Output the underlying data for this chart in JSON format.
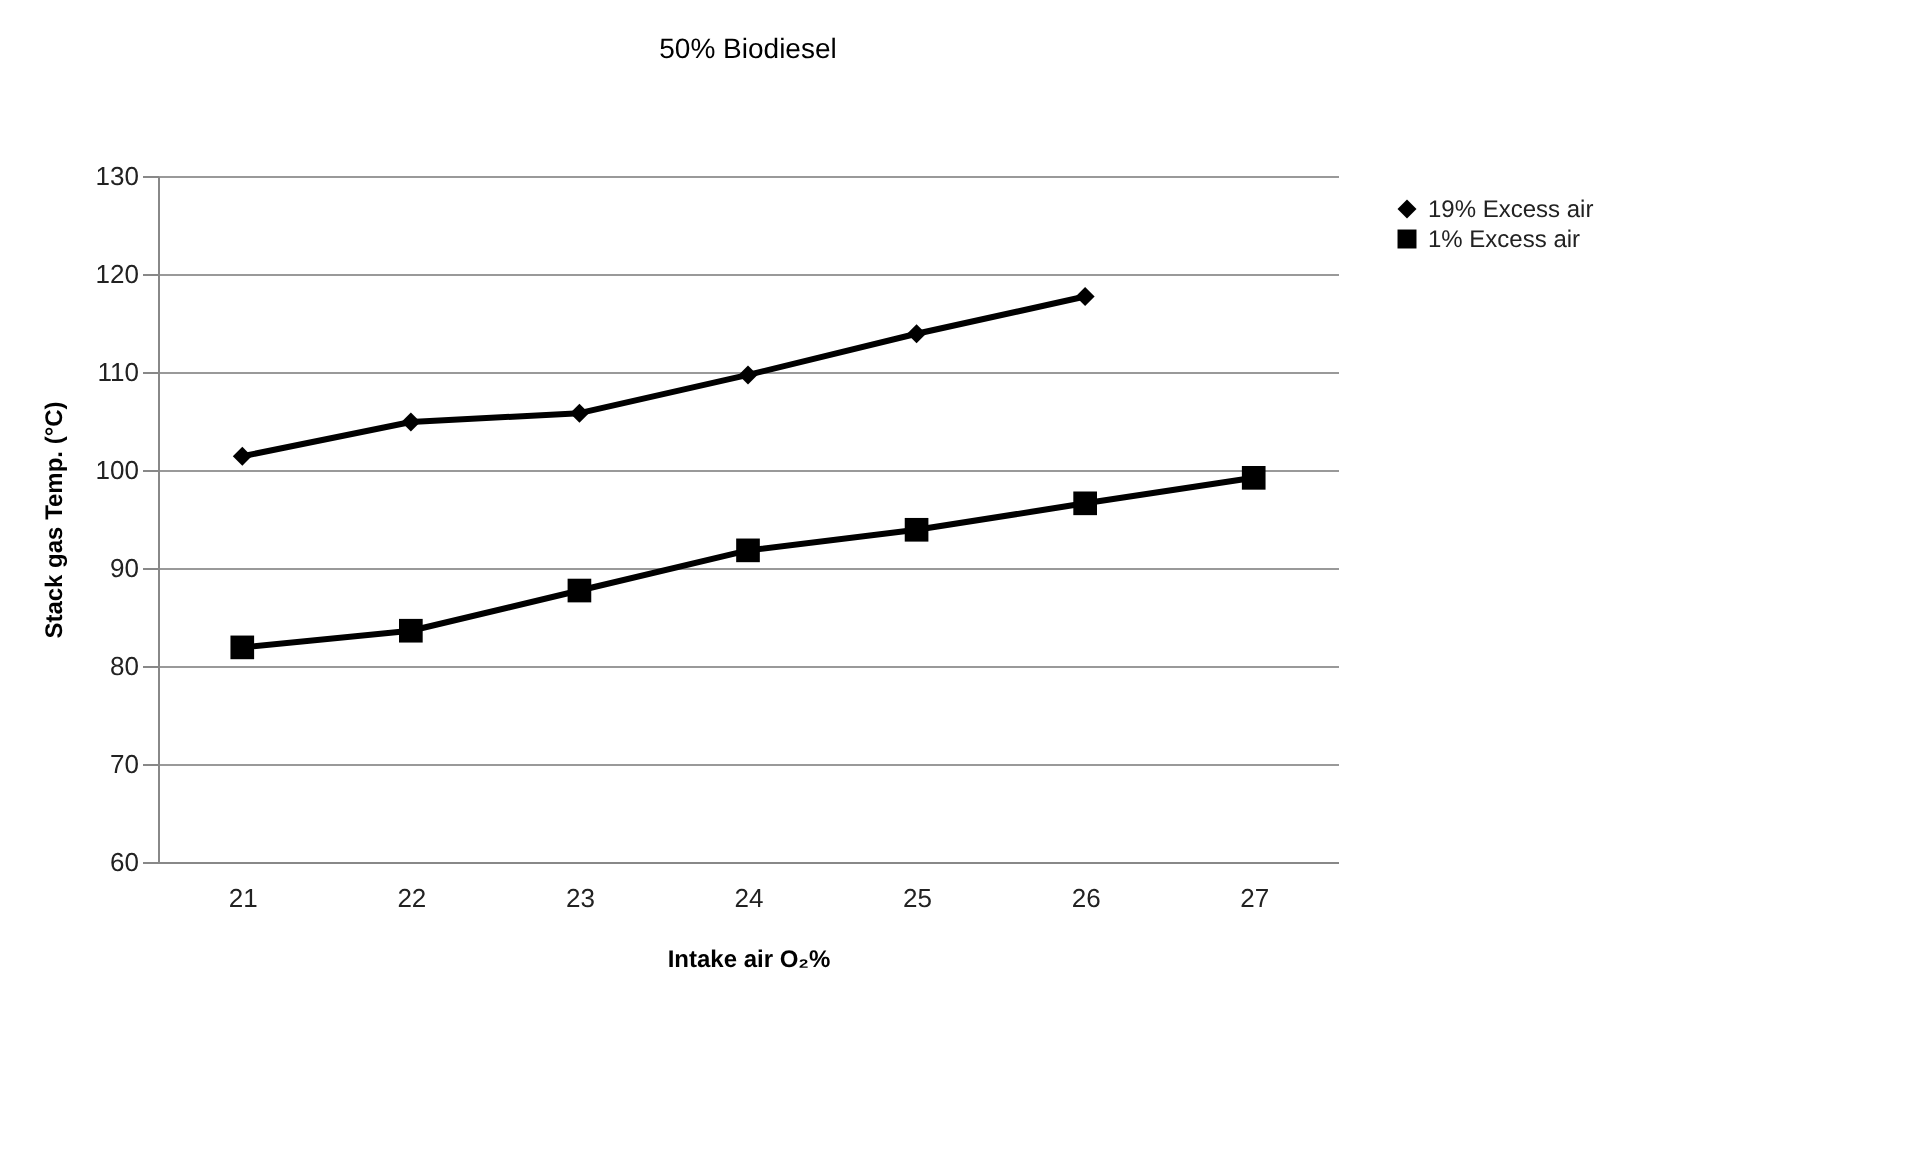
{
  "chart_data": {
    "type": "line",
    "title": "50% Biodiesel",
    "xlabel": "Intake air O₂%",
    "ylabel": "Stack gas Temp. (°C)",
    "categories": [
      "21",
      "22",
      "23",
      "24",
      "25",
      "26",
      "27"
    ],
    "series": [
      {
        "name": "19% Excess air",
        "color": "#000000",
        "marker": "diamond",
        "values": [
          101.4,
          104.9,
          105.8,
          109.7,
          113.9,
          117.7,
          null
        ]
      },
      {
        "name": "1% Excess air",
        "color": "#000000",
        "marker": "square",
        "values": [
          81.9,
          83.6,
          87.7,
          91.8,
          93.9,
          96.6,
          99.2
        ]
      }
    ],
    "ylim": [
      60,
      130
    ],
    "yticks": [
      60,
      70,
      80,
      90,
      100,
      110,
      120,
      130
    ],
    "grid": "y",
    "legend": "right",
    "line_style": "solid"
  }
}
